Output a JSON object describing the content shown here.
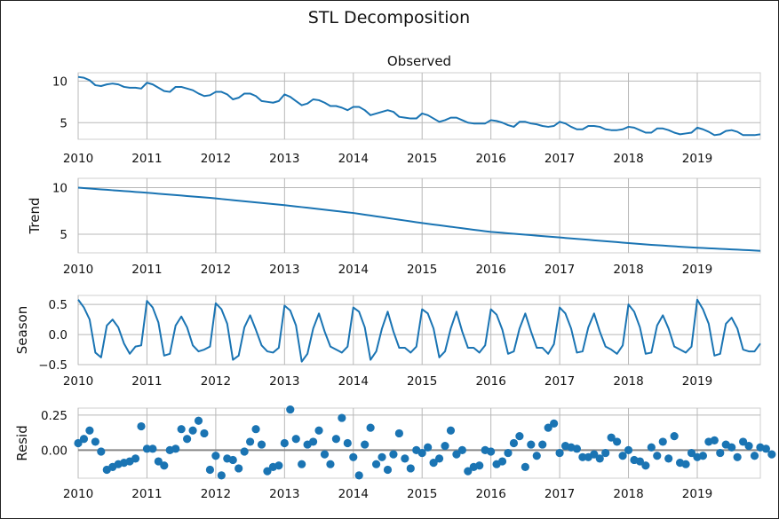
{
  "chart_data": {
    "type": "line",
    "title": "STL Decomposition",
    "x_ticks": [
      "2010",
      "2011",
      "2012",
      "2013",
      "2014",
      "2015",
      "2016",
      "2017",
      "2018",
      "2019"
    ],
    "x_start": 2010.0,
    "x_end": 2019.917,
    "x_step": 0.08333,
    "grid": true,
    "panels": [
      {
        "key": "observed",
        "subtitle": "Observed",
        "ylabel": "",
        "type": "line",
        "ylim": [
          3.0,
          11.0
        ],
        "yticks": [
          {
            "v": 10,
            "label": "10"
          },
          {
            "v": 5,
            "label": "5"
          }
        ],
        "values": [
          10.5,
          10.4,
          10.1,
          9.5,
          9.4,
          9.6,
          9.7,
          9.6,
          9.3,
          9.2,
          9.2,
          9.1,
          9.8,
          9.6,
          9.2,
          8.8,
          8.7,
          9.3,
          9.3,
          9.1,
          8.9,
          8.5,
          8.2,
          8.3,
          8.7,
          8.7,
          8.4,
          7.8,
          8.0,
          8.5,
          8.5,
          8.2,
          7.6,
          7.5,
          7.4,
          7.6,
          8.4,
          8.1,
          7.6,
          7.1,
          7.3,
          7.8,
          7.7,
          7.4,
          7.0,
          7.0,
          6.8,
          6.5,
          6.9,
          6.9,
          6.5,
          5.9,
          6.1,
          6.3,
          6.5,
          6.3,
          5.7,
          5.6,
          5.5,
          5.5,
          6.1,
          5.9,
          5.5,
          5.1,
          5.3,
          5.6,
          5.6,
          5.3,
          5.0,
          4.9,
          4.9,
          4.9,
          5.3,
          5.2,
          5.0,
          4.7,
          4.5,
          5.1,
          5.1,
          4.9,
          4.8,
          4.6,
          4.5,
          4.6,
          5.1,
          4.9,
          4.5,
          4.2,
          4.2,
          4.6,
          4.6,
          4.5,
          4.2,
          4.1,
          4.1,
          4.2,
          4.5,
          4.4,
          4.1,
          3.8,
          3.8,
          4.3,
          4.3,
          4.1,
          3.8,
          3.6,
          3.7,
          3.8,
          4.4,
          4.2,
          3.9,
          3.5,
          3.6,
          4.0,
          4.1,
          3.9,
          3.5,
          3.5,
          3.5,
          3.6
        ]
      },
      {
        "key": "trend",
        "subtitle": "",
        "ylabel": "Trend",
        "type": "line",
        "ylim": [
          3.0,
          11.0
        ],
        "yticks": [
          {
            "v": 10,
            "label": "10"
          },
          {
            "v": 5,
            "label": "5"
          }
        ],
        "values": [
          10.0,
          9.95,
          9.9,
          9.86,
          9.81,
          9.77,
          9.72,
          9.68,
          9.63,
          9.59,
          9.54,
          9.5,
          9.45,
          9.4,
          9.35,
          9.3,
          9.25,
          9.2,
          9.15,
          9.1,
          9.05,
          9.0,
          8.95,
          8.9,
          8.85,
          8.78,
          8.72,
          8.66,
          8.6,
          8.54,
          8.48,
          8.42,
          8.36,
          8.3,
          8.24,
          8.18,
          8.12,
          8.05,
          7.98,
          7.91,
          7.84,
          7.77,
          7.7,
          7.63,
          7.56,
          7.49,
          7.42,
          7.35,
          7.28,
          7.19,
          7.1,
          7.01,
          6.92,
          6.83,
          6.74,
          6.65,
          6.56,
          6.47,
          6.38,
          6.29,
          6.2,
          6.12,
          6.04,
          5.96,
          5.88,
          5.8,
          5.72,
          5.64,
          5.56,
          5.48,
          5.4,
          5.32,
          5.25,
          5.2,
          5.15,
          5.1,
          5.05,
          5.0,
          4.95,
          4.9,
          4.85,
          4.8,
          4.75,
          4.7,
          4.65,
          4.6,
          4.55,
          4.5,
          4.45,
          4.4,
          4.35,
          4.3,
          4.25,
          4.2,
          4.15,
          4.1,
          4.05,
          4.0,
          3.95,
          3.9,
          3.86,
          3.82,
          3.78,
          3.74,
          3.7,
          3.66,
          3.62,
          3.58,
          3.55,
          3.52,
          3.49,
          3.46,
          3.43,
          3.4,
          3.37,
          3.34,
          3.31,
          3.28,
          3.25,
          3.22
        ]
      },
      {
        "key": "season",
        "subtitle": "",
        "ylabel": "Season",
        "type": "line",
        "ylim": [
          -0.5,
          0.65
        ],
        "yticks": [
          {
            "v": 0.5,
            "label": "0.5"
          },
          {
            "v": 0.0,
            "label": "0.0"
          },
          {
            "v": -0.5,
            "label": "−0.5"
          }
        ],
        "values": [
          0.58,
          0.45,
          0.25,
          -0.3,
          -0.38,
          0.15,
          0.25,
          0.12,
          -0.15,
          -0.32,
          -0.2,
          -0.18,
          0.56,
          0.45,
          0.2,
          -0.35,
          -0.32,
          0.15,
          0.3,
          0.12,
          -0.18,
          -0.28,
          -0.25,
          -0.2,
          0.52,
          0.42,
          0.18,
          -0.42,
          -0.35,
          0.12,
          0.32,
          0.08,
          -0.18,
          -0.28,
          -0.3,
          -0.22,
          0.48,
          0.4,
          0.15,
          -0.45,
          -0.32,
          0.1,
          0.35,
          0.05,
          -0.2,
          -0.25,
          -0.3,
          -0.2,
          0.45,
          0.38,
          0.12,
          -0.42,
          -0.28,
          0.1,
          0.38,
          0.05,
          -0.22,
          -0.22,
          -0.3,
          -0.2,
          0.42,
          0.35,
          0.1,
          -0.38,
          -0.28,
          0.1,
          0.38,
          0.05,
          -0.22,
          -0.22,
          -0.3,
          -0.18,
          0.42,
          0.33,
          0.08,
          -0.32,
          -0.28,
          0.1,
          0.35,
          0.05,
          -0.22,
          -0.22,
          -0.32,
          -0.16,
          0.45,
          0.35,
          0.1,
          -0.3,
          -0.28,
          0.12,
          0.35,
          0.05,
          -0.2,
          -0.25,
          -0.32,
          -0.18,
          0.5,
          0.38,
          0.12,
          -0.32,
          -0.3,
          0.15,
          0.32,
          0.1,
          -0.2,
          -0.25,
          -0.3,
          -0.2,
          0.58,
          0.42,
          0.18,
          -0.35,
          -0.32,
          0.18,
          0.28,
          0.1,
          -0.25,
          -0.28,
          -0.28,
          -0.15
        ]
      },
      {
        "key": "resid",
        "subtitle": "",
        "ylabel": "Resid",
        "type": "scatter",
        "ylim": [
          -0.2,
          0.3
        ],
        "zero_line": true,
        "yticks": [
          {
            "v": 0.25,
            "label": "0.25"
          },
          {
            "v": 0.0,
            "label": "0.00"
          }
        ],
        "values": [
          0.05,
          0.08,
          0.14,
          0.06,
          -0.01,
          -0.14,
          -0.12,
          -0.1,
          -0.09,
          -0.08,
          -0.06,
          0.17,
          0.01,
          0.01,
          -0.08,
          -0.11,
          0.0,
          0.01,
          0.15,
          0.08,
          0.14,
          0.21,
          0.12,
          -0.14,
          -0.04,
          -0.18,
          -0.06,
          -0.07,
          -0.13,
          -0.01,
          0.06,
          0.15,
          0.04,
          -0.15,
          -0.12,
          -0.11,
          0.05,
          0.29,
          0.08,
          -0.1,
          0.04,
          0.06,
          0.14,
          -0.03,
          -0.1,
          0.08,
          0.23,
          0.05,
          -0.05,
          -0.18,
          0.04,
          0.16,
          -0.1,
          -0.05,
          -0.14,
          -0.03,
          0.12,
          -0.06,
          -0.13,
          0.0,
          -0.02,
          0.02,
          -0.09,
          -0.06,
          0.03,
          0.14,
          -0.03,
          0.0,
          -0.15,
          -0.12,
          -0.11,
          0.0,
          -0.01,
          -0.1,
          -0.08,
          -0.02,
          0.05,
          0.1,
          -0.12,
          0.04,
          -0.04,
          0.04,
          0.16,
          0.19,
          -0.02,
          0.03,
          0.02,
          0.01,
          -0.05,
          -0.05,
          -0.03,
          -0.06,
          -0.02,
          0.09,
          0.06,
          -0.04,
          0.0,
          -0.07,
          -0.08,
          -0.11,
          0.02,
          -0.04,
          0.06,
          -0.06,
          0.1,
          -0.09,
          -0.1,
          -0.02,
          -0.05,
          -0.04,
          0.06,
          0.07,
          -0.02,
          0.04,
          0.02,
          -0.05,
          0.06,
          0.03,
          -0.04,
          0.02,
          0.01,
          -0.03
        ]
      }
    ]
  }
}
